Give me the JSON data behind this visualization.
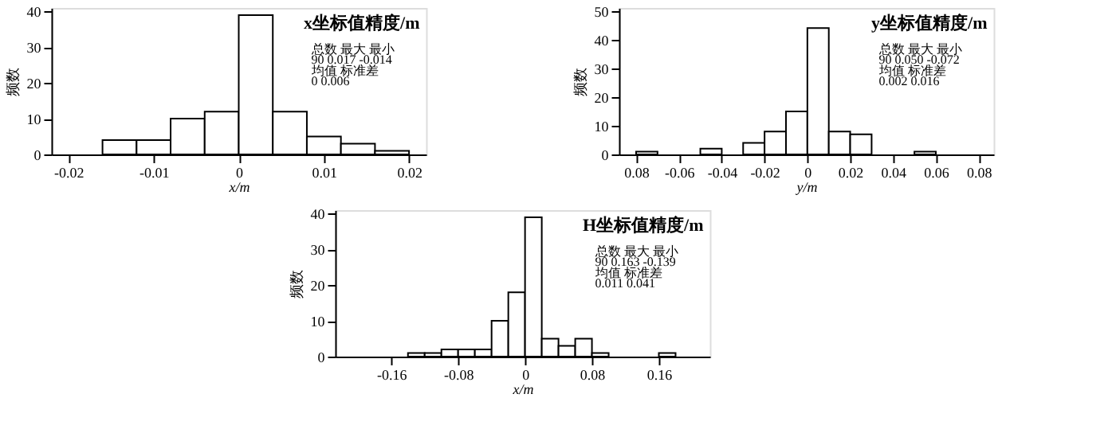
{
  "chart_data": [
    {
      "type": "histogram",
      "title": "x坐标值精度/m",
      "xlabel": "x/m",
      "ylabel": "频数",
      "bins": [
        -0.016,
        -0.012,
        -0.008,
        -0.004,
        0,
        0.004,
        0.008,
        0.012,
        0.016,
        0.02
      ],
      "values": [
        4,
        4,
        10,
        12,
        39,
        12,
        5,
        3,
        1
      ],
      "color": "#ffffff",
      "xlim": [
        -0.022,
        0.022
      ],
      "xticks": [
        -0.02,
        -0.01,
        0,
        0.01,
        0.02
      ],
      "ylim": [
        0,
        41
      ],
      "yticks": [
        0,
        10,
        20,
        30,
        40
      ],
      "grid": false,
      "annotations": [
        "总数    最大    最小",
        "90    0.017  -0.014",
        "均值    标准差",
        "0       0.006"
      ]
    },
    {
      "type": "histogram",
      "title": "y坐标值精度/m",
      "xlabel": "y/m",
      "ylabel": "频数",
      "bins": [
        -0.08,
        -0.07,
        -0.06,
        -0.05,
        -0.04,
        -0.03,
        -0.02,
        -0.01,
        0,
        0.01,
        0.02,
        0.03,
        0.04,
        0.05,
        0.06
      ],
      "values": [
        1,
        0,
        0,
        2,
        0,
        4,
        8,
        15,
        44,
        8,
        7,
        0,
        0,
        1
      ],
      "color": "#ffffff",
      "xlim": [
        -0.088,
        0.087
      ],
      "xticks": [
        {
          "value": -0.08,
          "label": "0.08"
        },
        -0.06,
        -0.04,
        -0.02,
        0,
        0.02,
        0.04,
        0.06,
        0.08
      ],
      "ylim": [
        0,
        51
      ],
      "yticks": [
        0,
        10,
        20,
        30,
        40,
        50
      ],
      "grid": false,
      "annotations": [
        "总数    最大    最小",
        "90    0.050  -0.072",
        "均值    标准差",
        "0.002   0.016"
      ]
    },
    {
      "type": "histogram",
      "title": "H坐标值精度/m",
      "xlabel": "x/m",
      "ylabel": "频数",
      "bins": [
        -0.14,
        -0.12,
        -0.1,
        -0.08,
        -0.06,
        -0.04,
        -0.02,
        0,
        0.02,
        0.04,
        0.06,
        0.08,
        0.1,
        0.12,
        0.14,
        0.16,
        0.18
      ],
      "values": [
        1,
        1,
        2,
        2,
        2,
        10,
        18,
        39,
        5,
        3,
        5,
        1,
        0,
        0,
        0,
        1
      ],
      "color": "#ffffff",
      "xlim": [
        -0.227,
        0.221
      ],
      "xticks": [
        -0.16,
        -0.08,
        0,
        0.08,
        0.16
      ],
      "ylim": [
        0,
        41
      ],
      "yticks": [
        0,
        10,
        20,
        30,
        40
      ],
      "grid": false,
      "annotations": [
        "总数    最大    最小",
        "90    0.163  -0.139",
        "均值    标准差",
        "0.011   0.041"
      ]
    }
  ]
}
